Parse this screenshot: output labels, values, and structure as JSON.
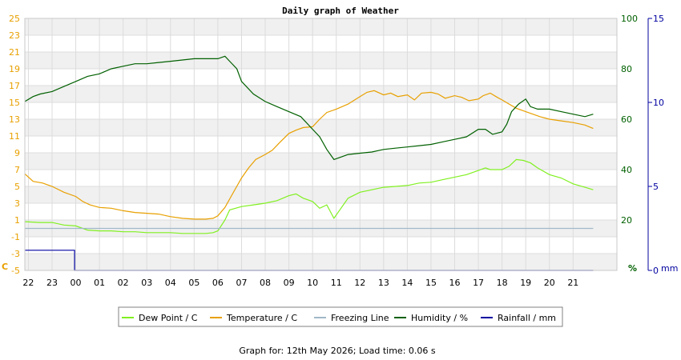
{
  "chart_data": {
    "type": "line",
    "title": "Daily graph of Weather",
    "footer": "Graph for: 12th May 2026; Load time: 0.06 s",
    "x_ticks": [
      "22",
      "23",
      "00",
      "01",
      "02",
      "03",
      "04",
      "05",
      "06",
      "07",
      "08",
      "09",
      "10",
      "11",
      "12",
      "13",
      "14",
      "15",
      "16",
      "17",
      "18",
      "19",
      "20",
      "21"
    ],
    "x_range_hours": [
      -2.15,
      22.85
    ],
    "left_axis": {
      "unit_label": "C",
      "ticks": [
        "-5",
        "-3",
        "-1",
        "1",
        "3",
        "5",
        "7",
        "9",
        "11",
        "13",
        "15",
        "17",
        "19",
        "21",
        "23",
        "25"
      ],
      "range": [
        -5,
        25
      ],
      "color": "#e8a000"
    },
    "right_axis_1": {
      "unit_label": "%",
      "ticks": [
        "20",
        "40",
        "60",
        "80",
        "100"
      ],
      "range": [
        0,
        100
      ],
      "color": "#006000"
    },
    "right_axis_2": {
      "unit_label": "mm",
      "ticks": [
        "0",
        "5",
        "10",
        "15"
      ],
      "range": [
        0,
        15
      ],
      "color": "#0000a0"
    },
    "grid": true,
    "legend_position": "bottom",
    "series": [
      {
        "name": "Dew Point / C",
        "axis": "left",
        "color": "#80f020",
        "x": [
          -2.15,
          -1.5,
          -1,
          -0.5,
          0,
          0.5,
          1,
          1.5,
          2,
          2.5,
          3,
          3.5,
          4,
          4.5,
          5,
          5.5,
          5.8,
          6,
          6.3,
          6.5,
          7,
          7.5,
          8,
          8.5,
          9,
          9.3,
          9.6,
          10,
          10.3,
          10.6,
          10.9,
          11.2,
          11.5,
          12,
          12.5,
          13,
          13.5,
          14,
          14.5,
          15,
          15.5,
          16,
          16.5,
          17,
          17.3,
          17.5,
          18,
          18.3,
          18.6,
          18.9,
          19.2,
          19.5,
          20,
          20.5,
          21,
          21.5,
          21.85
        ],
        "y": [
          0.8,
          0.7,
          0.7,
          0.4,
          0.3,
          -0.2,
          -0.3,
          -0.3,
          -0.4,
          -0.4,
          -0.5,
          -0.5,
          -0.5,
          -0.6,
          -0.6,
          -0.6,
          -0.5,
          -0.3,
          1,
          2.2,
          2.6,
          2.8,
          3,
          3.3,
          3.9,
          4.1,
          3.6,
          3.2,
          2.4,
          2.8,
          1.2,
          2.4,
          3.6,
          4.3,
          4.6,
          4.9,
          5,
          5.1,
          5.4,
          5.5,
          5.8,
          6.1,
          6.4,
          6.9,
          7.2,
          7,
          7,
          7.4,
          8.2,
          8.1,
          7.8,
          7.2,
          6.4,
          6,
          5.3,
          4.9,
          4.6
        ]
      },
      {
        "name": "Temperature / C",
        "axis": "left",
        "color": "#e8a000",
        "x": [
          -2.15,
          -1.8,
          -1.4,
          -1,
          -0.5,
          0,
          0.3,
          0.6,
          1,
          1.5,
          2,
          2.5,
          3,
          3.5,
          4,
          4.5,
          5,
          5.5,
          5.8,
          6,
          6.3,
          6.6,
          7,
          7.3,
          7.6,
          8,
          8.3,
          8.6,
          9,
          9.3,
          9.6,
          10,
          10.3,
          10.6,
          11,
          11.5,
          12,
          12.3,
          12.6,
          13,
          13.3,
          13.6,
          14,
          14.3,
          14.6,
          15,
          15.3,
          15.6,
          16,
          16.3,
          16.6,
          17,
          17.2,
          17.5,
          17.8,
          18,
          18.3,
          18.6,
          19,
          19.3,
          19.6,
          20,
          20.5,
          21,
          21.5,
          21.85
        ],
        "y": [
          6.5,
          5.6,
          5.4,
          5,
          4.3,
          3.8,
          3.2,
          2.8,
          2.5,
          2.4,
          2.1,
          1.9,
          1.8,
          1.7,
          1.4,
          1.2,
          1.1,
          1.1,
          1.2,
          1.5,
          2.5,
          4,
          6,
          7.2,
          8.2,
          8.8,
          9.3,
          10.2,
          11.3,
          11.7,
          12,
          12.1,
          13,
          13.8,
          14.2,
          14.8,
          15.7,
          16.2,
          16.4,
          15.9,
          16.1,
          15.7,
          15.9,
          15.3,
          16.1,
          16.2,
          16,
          15.5,
          15.8,
          15.6,
          15.2,
          15.4,
          15.8,
          16.1,
          15.6,
          15.3,
          14.8,
          14.3,
          13.9,
          13.6,
          13.3,
          13,
          12.8,
          12.6,
          12.3,
          11.9
        ]
      },
      {
        "name": "Freezing Line",
        "axis": "left",
        "color": "#a0b8c8",
        "x": [
          -2.15,
          21.85
        ],
        "y": [
          0,
          0
        ]
      },
      {
        "name": "Humidity / %",
        "axis": "right_1",
        "color": "#006000",
        "x": [
          -2.15,
          -1.8,
          -1.5,
          -1,
          -0.5,
          0,
          0.5,
          1,
          1.5,
          2,
          2.5,
          3,
          3.5,
          4,
          4.5,
          5,
          5.5,
          6,
          6.3,
          6.5,
          6.8,
          7,
          7.5,
          8,
          8.5,
          9,
          9.5,
          10,
          10.3,
          10.6,
          10.9,
          11.2,
          11.5,
          12,
          12.5,
          13,
          13.5,
          14,
          14.5,
          15,
          15.5,
          16,
          16.5,
          17,
          17.3,
          17.6,
          18,
          18.2,
          18.4,
          18.7,
          19,
          19.2,
          19.5,
          20,
          20.5,
          21,
          21.5,
          21.85
        ],
        "y": [
          67,
          69,
          70,
          71,
          73,
          75,
          77,
          78,
          80,
          81,
          82,
          82,
          82.5,
          83,
          83.5,
          84,
          84,
          84,
          85,
          83,
          80,
          75,
          70,
          67,
          65,
          63,
          61,
          56,
          53,
          48,
          44,
          45,
          46,
          46.5,
          47,
          48,
          48.5,
          49,
          49.5,
          50,
          51,
          52,
          53,
          56,
          56,
          54,
          55,
          58,
          63,
          66,
          68,
          65,
          64,
          64,
          63,
          62,
          61,
          62
        ]
      },
      {
        "name": "Rainfall / mm",
        "axis": "right_2",
        "color": "#0000a0",
        "x": [
          -2.15,
          -0.05,
          -0.05,
          21.85
        ],
        "y": [
          1.2,
          1.2,
          0,
          0
        ]
      }
    ]
  }
}
